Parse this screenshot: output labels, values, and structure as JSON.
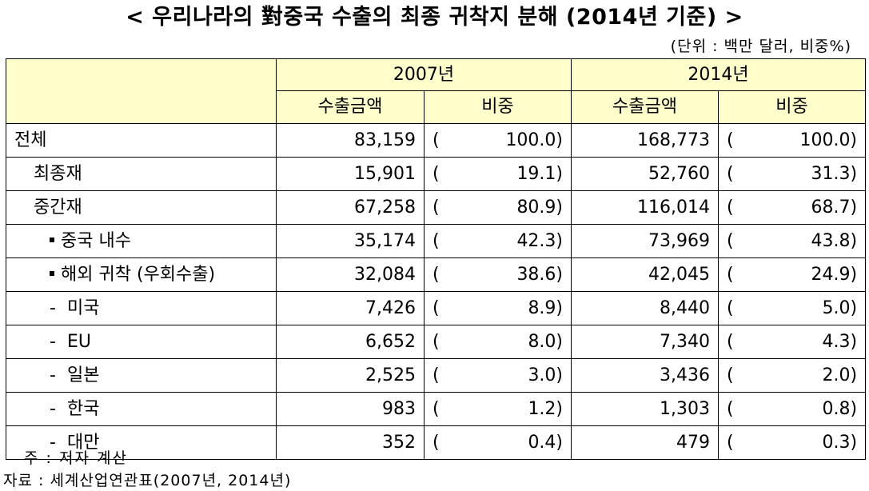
{
  "title": "< 우리나라의 對중국 수출의 최종 귀착지 분해 (2014년 기준) >",
  "unit": "(단위 : 백만 달러, 비중%)",
  "header": {
    "year1": "2007년",
    "year2": "2014년",
    "col_amount": "수출금액",
    "col_share": "비중"
  },
  "rows": [
    {
      "label": "전체",
      "v2007": "83,159",
      "r2007_open": "(",
      "r2007": "100.0)",
      "v2014": "168,773",
      "r2014_open": "(",
      "r2014": "100.0)"
    },
    {
      "label": "최종재",
      "v2007": "15,901",
      "r2007_open": "(",
      "r2007": "19.1)",
      "v2014": "52,760",
      "r2014_open": "(",
      "r2014": "31.3)"
    },
    {
      "label": "중간재",
      "v2007": "67,258",
      "r2007_open": "(",
      "r2007": "80.9)",
      "v2014": "116,014",
      "r2014_open": "(",
      "r2014": "68.7)"
    },
    {
      "label": "중국 내수",
      "v2007": "35,174",
      "r2007_open": "(",
      "r2007": "42.3)",
      "v2014": "73,969",
      "r2014_open": "(",
      "r2014": "43.8)"
    },
    {
      "label": "해외 귀착 (우회수출)",
      "v2007": "32,084",
      "r2007_open": "(",
      "r2007": "38.6)",
      "v2014": "42,045",
      "r2014_open": "(",
      "r2014": "24.9)"
    },
    {
      "label": "미국",
      "v2007": "7,426",
      "r2007_open": "(",
      "r2007": "8.9)",
      "v2014": "8,440",
      "r2014_open": "(",
      "r2014": "5.0)"
    },
    {
      "label": "EU",
      "v2007": "6,652",
      "r2007_open": "(",
      "r2007": "8.0)",
      "v2014": "7,340",
      "r2014_open": "(",
      "r2014": "4.3)"
    },
    {
      "label": "일본",
      "v2007": "2,525",
      "r2007_open": "(",
      "r2007": "3.0)",
      "v2014": "3,436",
      "r2014_open": "(",
      "r2014": "2.0)"
    },
    {
      "label": "한국",
      "v2007": "983",
      "r2007_open": "(",
      "r2007": "1.2)",
      "v2014": "1,303",
      "r2014_open": "(",
      "r2014": "0.8)"
    },
    {
      "label": "대만",
      "v2007": "352",
      "r2007_open": "(",
      "r2007": "0.4)",
      "v2014": "479",
      "r2014_open": "(",
      "r2014": "0.3)"
    }
  ],
  "note": "주 : 저자 계산",
  "source": "자료 : 세계산업연관표(2007년, 2014년)",
  "dash": "-"
}
